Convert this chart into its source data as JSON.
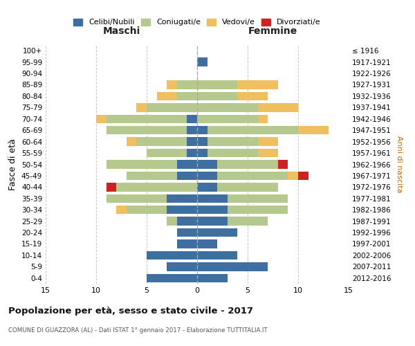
{
  "age_groups": [
    "0-4",
    "5-9",
    "10-14",
    "15-19",
    "20-24",
    "25-29",
    "30-34",
    "35-39",
    "40-44",
    "45-49",
    "50-54",
    "55-59",
    "60-64",
    "65-69",
    "70-74",
    "75-79",
    "80-84",
    "85-89",
    "90-94",
    "95-99",
    "100+"
  ],
  "birth_years": [
    "2012-2016",
    "2007-2011",
    "2002-2006",
    "1997-2001",
    "1992-1996",
    "1987-1991",
    "1982-1986",
    "1977-1981",
    "1972-1976",
    "1967-1971",
    "1962-1966",
    "1957-1961",
    "1952-1956",
    "1947-1951",
    "1942-1946",
    "1937-1941",
    "1932-1936",
    "1927-1931",
    "1922-1926",
    "1917-1921",
    "≤ 1916"
  ],
  "colors": {
    "celibi": "#3e6fa0",
    "coniugati": "#b5c98e",
    "vedovi": "#f0c060",
    "divorziati": "#cc2222"
  },
  "maschi": {
    "celibi": [
      5,
      3,
      5,
      2,
      2,
      2,
      3,
      3,
      0,
      2,
      2,
      1,
      1,
      1,
      1,
      0,
      0,
      0,
      0,
      0,
      0
    ],
    "coniugati": [
      0,
      0,
      0,
      0,
      0,
      1,
      4,
      6,
      8,
      5,
      7,
      4,
      5,
      8,
      8,
      5,
      2,
      2,
      0,
      0,
      0
    ],
    "vedovi": [
      0,
      0,
      0,
      0,
      0,
      0,
      1,
      0,
      0,
      0,
      0,
      0,
      1,
      0,
      1,
      1,
      2,
      1,
      0,
      0,
      0
    ],
    "divorziati": [
      0,
      0,
      0,
      0,
      0,
      0,
      0,
      0,
      1,
      0,
      0,
      0,
      0,
      0,
      0,
      0,
      0,
      0,
      0,
      0,
      0
    ]
  },
  "femmine": {
    "celibi": [
      3,
      7,
      4,
      2,
      4,
      3,
      3,
      3,
      2,
      2,
      2,
      1,
      1,
      1,
      0,
      0,
      0,
      0,
      0,
      1,
      0
    ],
    "coniugati": [
      0,
      0,
      0,
      0,
      0,
      4,
      6,
      6,
      6,
      7,
      6,
      5,
      5,
      9,
      6,
      6,
      4,
      4,
      0,
      0,
      0
    ],
    "vedovi": [
      0,
      0,
      0,
      0,
      0,
      0,
      0,
      0,
      0,
      1,
      0,
      2,
      2,
      3,
      1,
      4,
      3,
      4,
      0,
      0,
      0
    ],
    "divorziati": [
      0,
      0,
      0,
      0,
      0,
      0,
      0,
      0,
      0,
      1,
      1,
      0,
      0,
      0,
      0,
      0,
      0,
      0,
      0,
      0,
      0
    ]
  },
  "xlim": 15,
  "title": "Popolazione per età, sesso e stato civile - 2017",
  "subtitle": "COMUNE DI GUAZZORA (AL) - Dati ISTAT 1° gennaio 2017 - Elaborazione TUTTITALIA.IT",
  "ylabel_left": "Fasce di età",
  "ylabel_right": "Anni di nascita",
  "xlabel_maschi": "Maschi",
  "xlabel_femmine": "Femmine",
  "legend_labels": [
    "Celibi/Nubili",
    "Coniugati/e",
    "Vedovi/e",
    "Divorziati/e"
  ]
}
